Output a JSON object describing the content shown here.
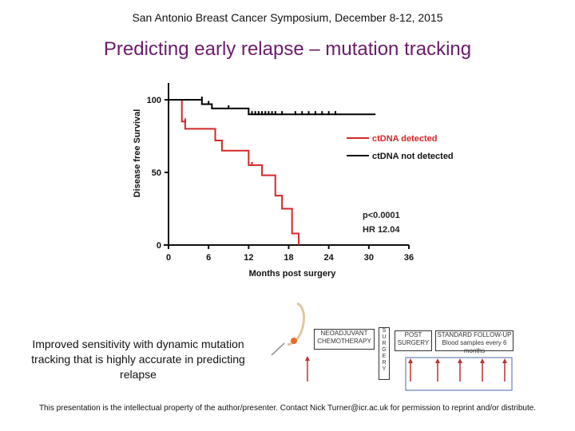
{
  "header": {
    "conference": "San Antonio Breast Cancer Symposium, December 8-12, 2015"
  },
  "slide": {
    "title": "Predicting early relapse – mutation tracking",
    "caption": "Improved sensitivity with dynamic mutation tracking that is highly accurate in predicting relapse",
    "footer": "This presentation is the intellectual property of the author/presenter. Contact Nick Turner@icr.ac.uk for permission to reprint and/or distribute."
  },
  "chart_data": {
    "type": "line",
    "subtype": "kaplan-meier",
    "xlabel": "Months post surgery",
    "ylabel": "Disease free Survival",
    "xlim": [
      0,
      36
    ],
    "ylim": [
      0,
      100
    ],
    "xticks": [
      0,
      6,
      12,
      18,
      24,
      30,
      36
    ],
    "yticks": [
      0,
      50,
      100
    ],
    "series": [
      {
        "name": "ctDNA detected",
        "color": "#d62728",
        "steps": [
          [
            0,
            100
          ],
          [
            2,
            100
          ],
          [
            2,
            85
          ],
          [
            2.5,
            85
          ],
          [
            2.5,
            80
          ],
          [
            7,
            80
          ],
          [
            7,
            72
          ],
          [
            8,
            72
          ],
          [
            8,
            65
          ],
          [
            12,
            65
          ],
          [
            12,
            55
          ],
          [
            14,
            55
          ],
          [
            14,
            48
          ],
          [
            16,
            48
          ],
          [
            16,
            34
          ],
          [
            17,
            34
          ],
          [
            17,
            25
          ],
          [
            18.5,
            25
          ],
          [
            18.5,
            8
          ],
          [
            19.5,
            8
          ],
          [
            19.5,
            0
          ]
        ],
        "censored": [
          [
            2.5,
            85
          ],
          [
            12.5,
            55
          ]
        ]
      },
      {
        "name": "ctDNA not detected",
        "color": "#000000",
        "steps": [
          [
            0,
            100
          ],
          [
            5,
            100
          ],
          [
            5,
            97
          ],
          [
            6.5,
            97
          ],
          [
            6.5,
            94
          ],
          [
            12,
            94
          ],
          [
            12,
            90
          ],
          [
            31,
            90
          ]
        ],
        "censored": [
          [
            5,
            100
          ],
          [
            6,
            97
          ],
          [
            9,
            94
          ],
          [
            12.5,
            90
          ],
          [
            13,
            90
          ],
          [
            13.5,
            90
          ],
          [
            14,
            90
          ],
          [
            14.5,
            90
          ],
          [
            15,
            90
          ],
          [
            15.5,
            90
          ],
          [
            16,
            90
          ],
          [
            17,
            90
          ],
          [
            19,
            90
          ],
          [
            20,
            90
          ],
          [
            21,
            90
          ],
          [
            22,
            90
          ],
          [
            23,
            90
          ],
          [
            24,
            90
          ],
          [
            25,
            90
          ]
        ]
      }
    ],
    "legend": [
      "ctDNA detected",
      "ctDNA not detected"
    ],
    "annotations": [
      "p<0.0001",
      "HR 12.04"
    ]
  },
  "timeline": {
    "neoadjuvant": "NEOADJUVANT CHEMOTHERAPY",
    "surgery": "SURGERY",
    "post_surgery": "POST SURGERY",
    "followup": "STANDARD FOLLOW-UP Blood samples every 6 months"
  }
}
